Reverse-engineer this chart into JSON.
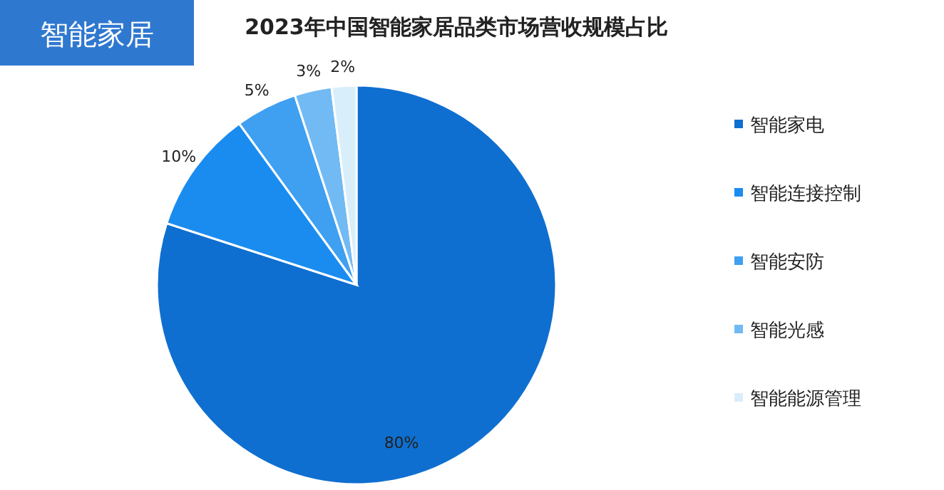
{
  "chart_data": {
    "type": "pie",
    "title": "2023年中国智能家居品类市场营收规模占比",
    "annotations": [
      "智能家居"
    ],
    "categories": [
      "智能家电",
      "智能连接控制",
      "智能安防",
      "智能光感",
      "智能能源管理"
    ],
    "values": [
      80,
      10,
      5,
      3,
      2
    ],
    "value_labels": [
      "80%",
      "10%",
      "5%",
      "3%",
      "2%"
    ],
    "colors": [
      "#0f6fd0",
      "#1a8cf0",
      "#3f9ff0",
      "#72baf3",
      "#d9eefb"
    ],
    "legend": "right"
  }
}
